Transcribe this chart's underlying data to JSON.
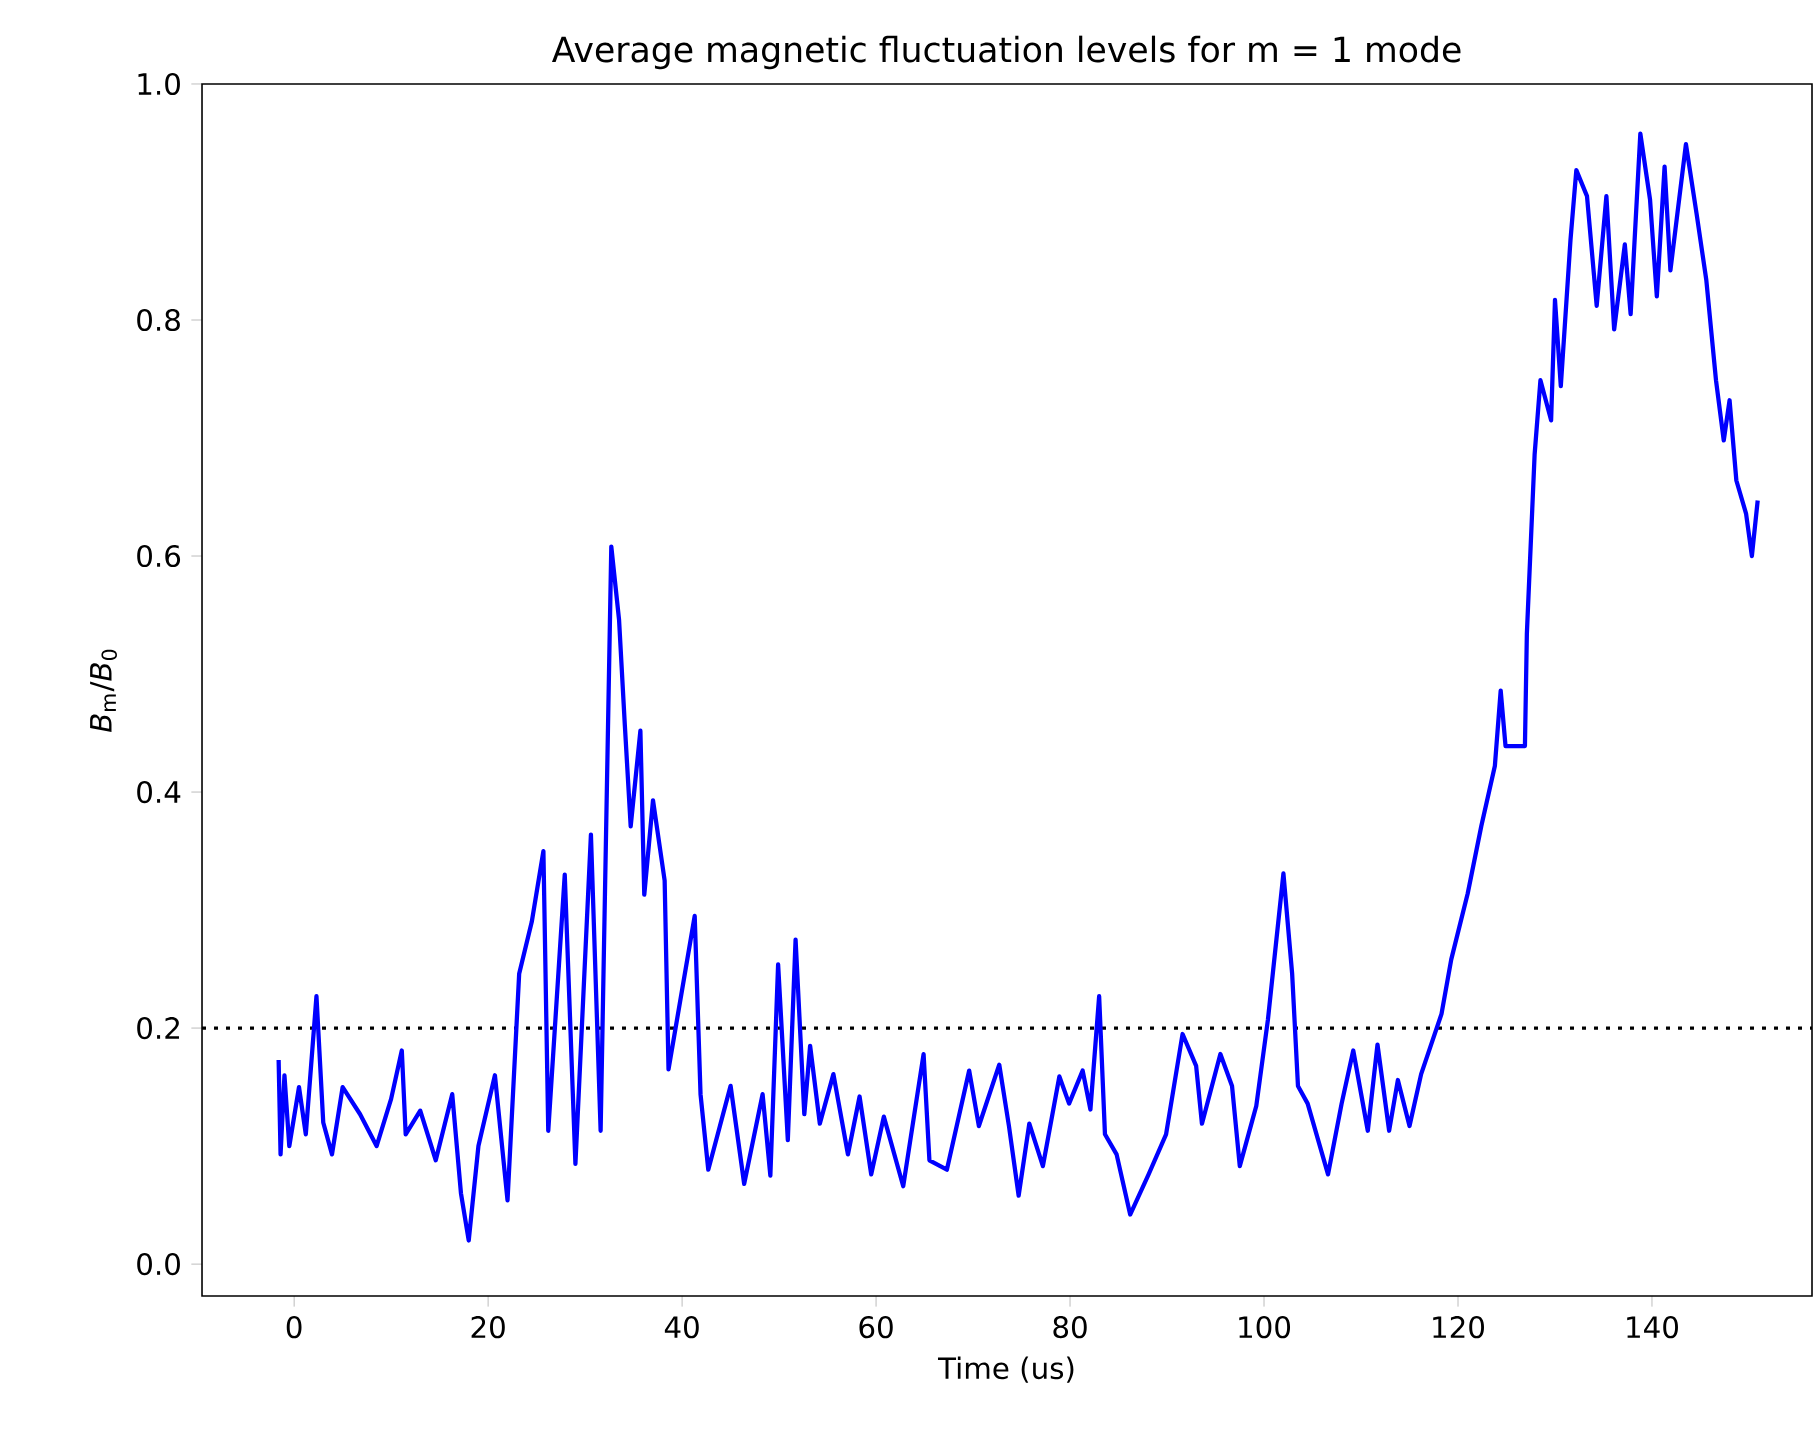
{
  "chart_data": {
    "type": "line",
    "title": "Average magnetic fluctuation levels for m = 1 mode",
    "xlabel": "Time (us)",
    "ylabel": "*B*$_{m}$/*B*$_{0}$",
    "xlim": [
      -9.5,
      156.5
    ],
    "ylim": [
      -0.027,
      1.0
    ],
    "xticks": [
      0,
      20,
      40,
      60,
      80,
      100,
      120,
      140
    ],
    "yticks": [
      {
        "value": 0,
        "label": "0.0"
      },
      {
        "value": 0.2,
        "label": "0.2"
      },
      {
        "value": 0.4,
        "label": "0.4"
      },
      {
        "value": 0.6,
        "label": "0.6"
      },
      {
        "value": 0.8,
        "label": "0.8"
      },
      {
        "value": 1.0,
        "label": "1.0"
      }
    ],
    "ref_lines": [
      {
        "axis": "y",
        "value": 0.2,
        "color": "#000000",
        "line_style": "dotted"
      }
    ],
    "series": [
      {
        "color": "#0000ff",
        "x": [
          -1.6,
          -1.4,
          -1.0,
          -0.5,
          0.5,
          1.2,
          2.3,
          3.0,
          3.9,
          5.0,
          6.8,
          8.5,
          10.0,
          11.1,
          11.5,
          13.0,
          14.6,
          16.3,
          17.2,
          18.0,
          19.0,
          20.7,
          22.0,
          23.2,
          24.5,
          25.7,
          26.2,
          27.9,
          29.0,
          30.6,
          31.6,
          32.7,
          33.5,
          34.1,
          34.7,
          35.7,
          36.1,
          37.0,
          38.2,
          38.6,
          41.3,
          41.9,
          42.7,
          43.9,
          45.0,
          46.4,
          48.3,
          49.1,
          49.9,
          50.9,
          51.7,
          52.6,
          53.2,
          54.2,
          55.6,
          57.1,
          58.3,
          59.5,
          60.8,
          62.8,
          64.9,
          65.5,
          67.3,
          69.6,
          70.6,
          72.7,
          73.7,
          74.7,
          75.8,
          77.2,
          78.9,
          79.9,
          81.3,
          82.1,
          83.0,
          83.6,
          84.8,
          86.2,
          88.1,
          89.9,
          91.6,
          93.0,
          93.6,
          95.5,
          96.7,
          97.5,
          98.8,
          99.2,
          100.4,
          102.0,
          102.9,
          103.5,
          104.5,
          106.6,
          108.0,
          109.2,
          110.7,
          111.7,
          112.9,
          113.8,
          115.0,
          116.2,
          118.3,
          119.3,
          121.0,
          122.4,
          123.8,
          124.4,
          124.9,
          126.9,
          127.1,
          127.9,
          128.5,
          129.6,
          130.0,
          130.6,
          131.6,
          132.2,
          133.3,
          134.3,
          135.3,
          136.1,
          137.2,
          137.8,
          138.8,
          139.8,
          140.5,
          141.3,
          141.9,
          143.5,
          144.6,
          145.6,
          146.6,
          147.4,
          148.0,
          148.7,
          149.7,
          150.3,
          150.9
        ],
        "values": [
          0.173,
          0.093,
          0.16,
          0.1,
          0.15,
          0.11,
          0.227,
          0.12,
          0.093,
          0.15,
          0.127,
          0.1,
          0.14,
          0.181,
          0.11,
          0.13,
          0.088,
          0.144,
          0.06,
          0.02,
          0.1,
          0.16,
          0.054,
          0.246,
          0.29,
          0.35,
          0.113,
          0.33,
          0.085,
          0.364,
          0.113,
          0.608,
          0.546,
          0.456,
          0.371,
          0.452,
          0.313,
          0.393,
          0.325,
          0.165,
          0.295,
          0.144,
          0.08,
          0.117,
          0.151,
          0.068,
          0.144,
          0.075,
          0.254,
          0.105,
          0.275,
          0.127,
          0.185,
          0.119,
          0.161,
          0.093,
          0.142,
          0.076,
          0.125,
          0.066,
          0.178,
          0.088,
          0.08,
          0.164,
          0.117,
          0.169,
          0.117,
          0.058,
          0.119,
          0.083,
          0.159,
          0.136,
          0.164,
          0.131,
          0.227,
          0.11,
          0.093,
          0.042,
          0.076,
          0.11,
          0.195,
          0.168,
          0.119,
          0.178,
          0.151,
          0.083,
          0.122,
          0.134,
          0.207,
          0.331,
          0.246,
          0.151,
          0.136,
          0.076,
          0.136,
          0.181,
          0.113,
          0.186,
          0.113,
          0.156,
          0.117,
          0.161,
          0.212,
          0.258,
          0.314,
          0.371,
          0.422,
          0.486,
          0.439,
          0.439,
          0.534,
          0.686,
          0.749,
          0.715,
          0.817,
          0.744,
          0.868,
          0.927,
          0.905,
          0.812,
          0.905,
          0.792,
          0.864,
          0.805,
          0.958,
          0.902,
          0.82,
          0.93,
          0.842,
          0.949,
          0.89,
          0.834,
          0.749,
          0.698,
          0.732,
          0.664,
          0.636,
          0.6,
          0.647
        ]
      }
    ]
  }
}
